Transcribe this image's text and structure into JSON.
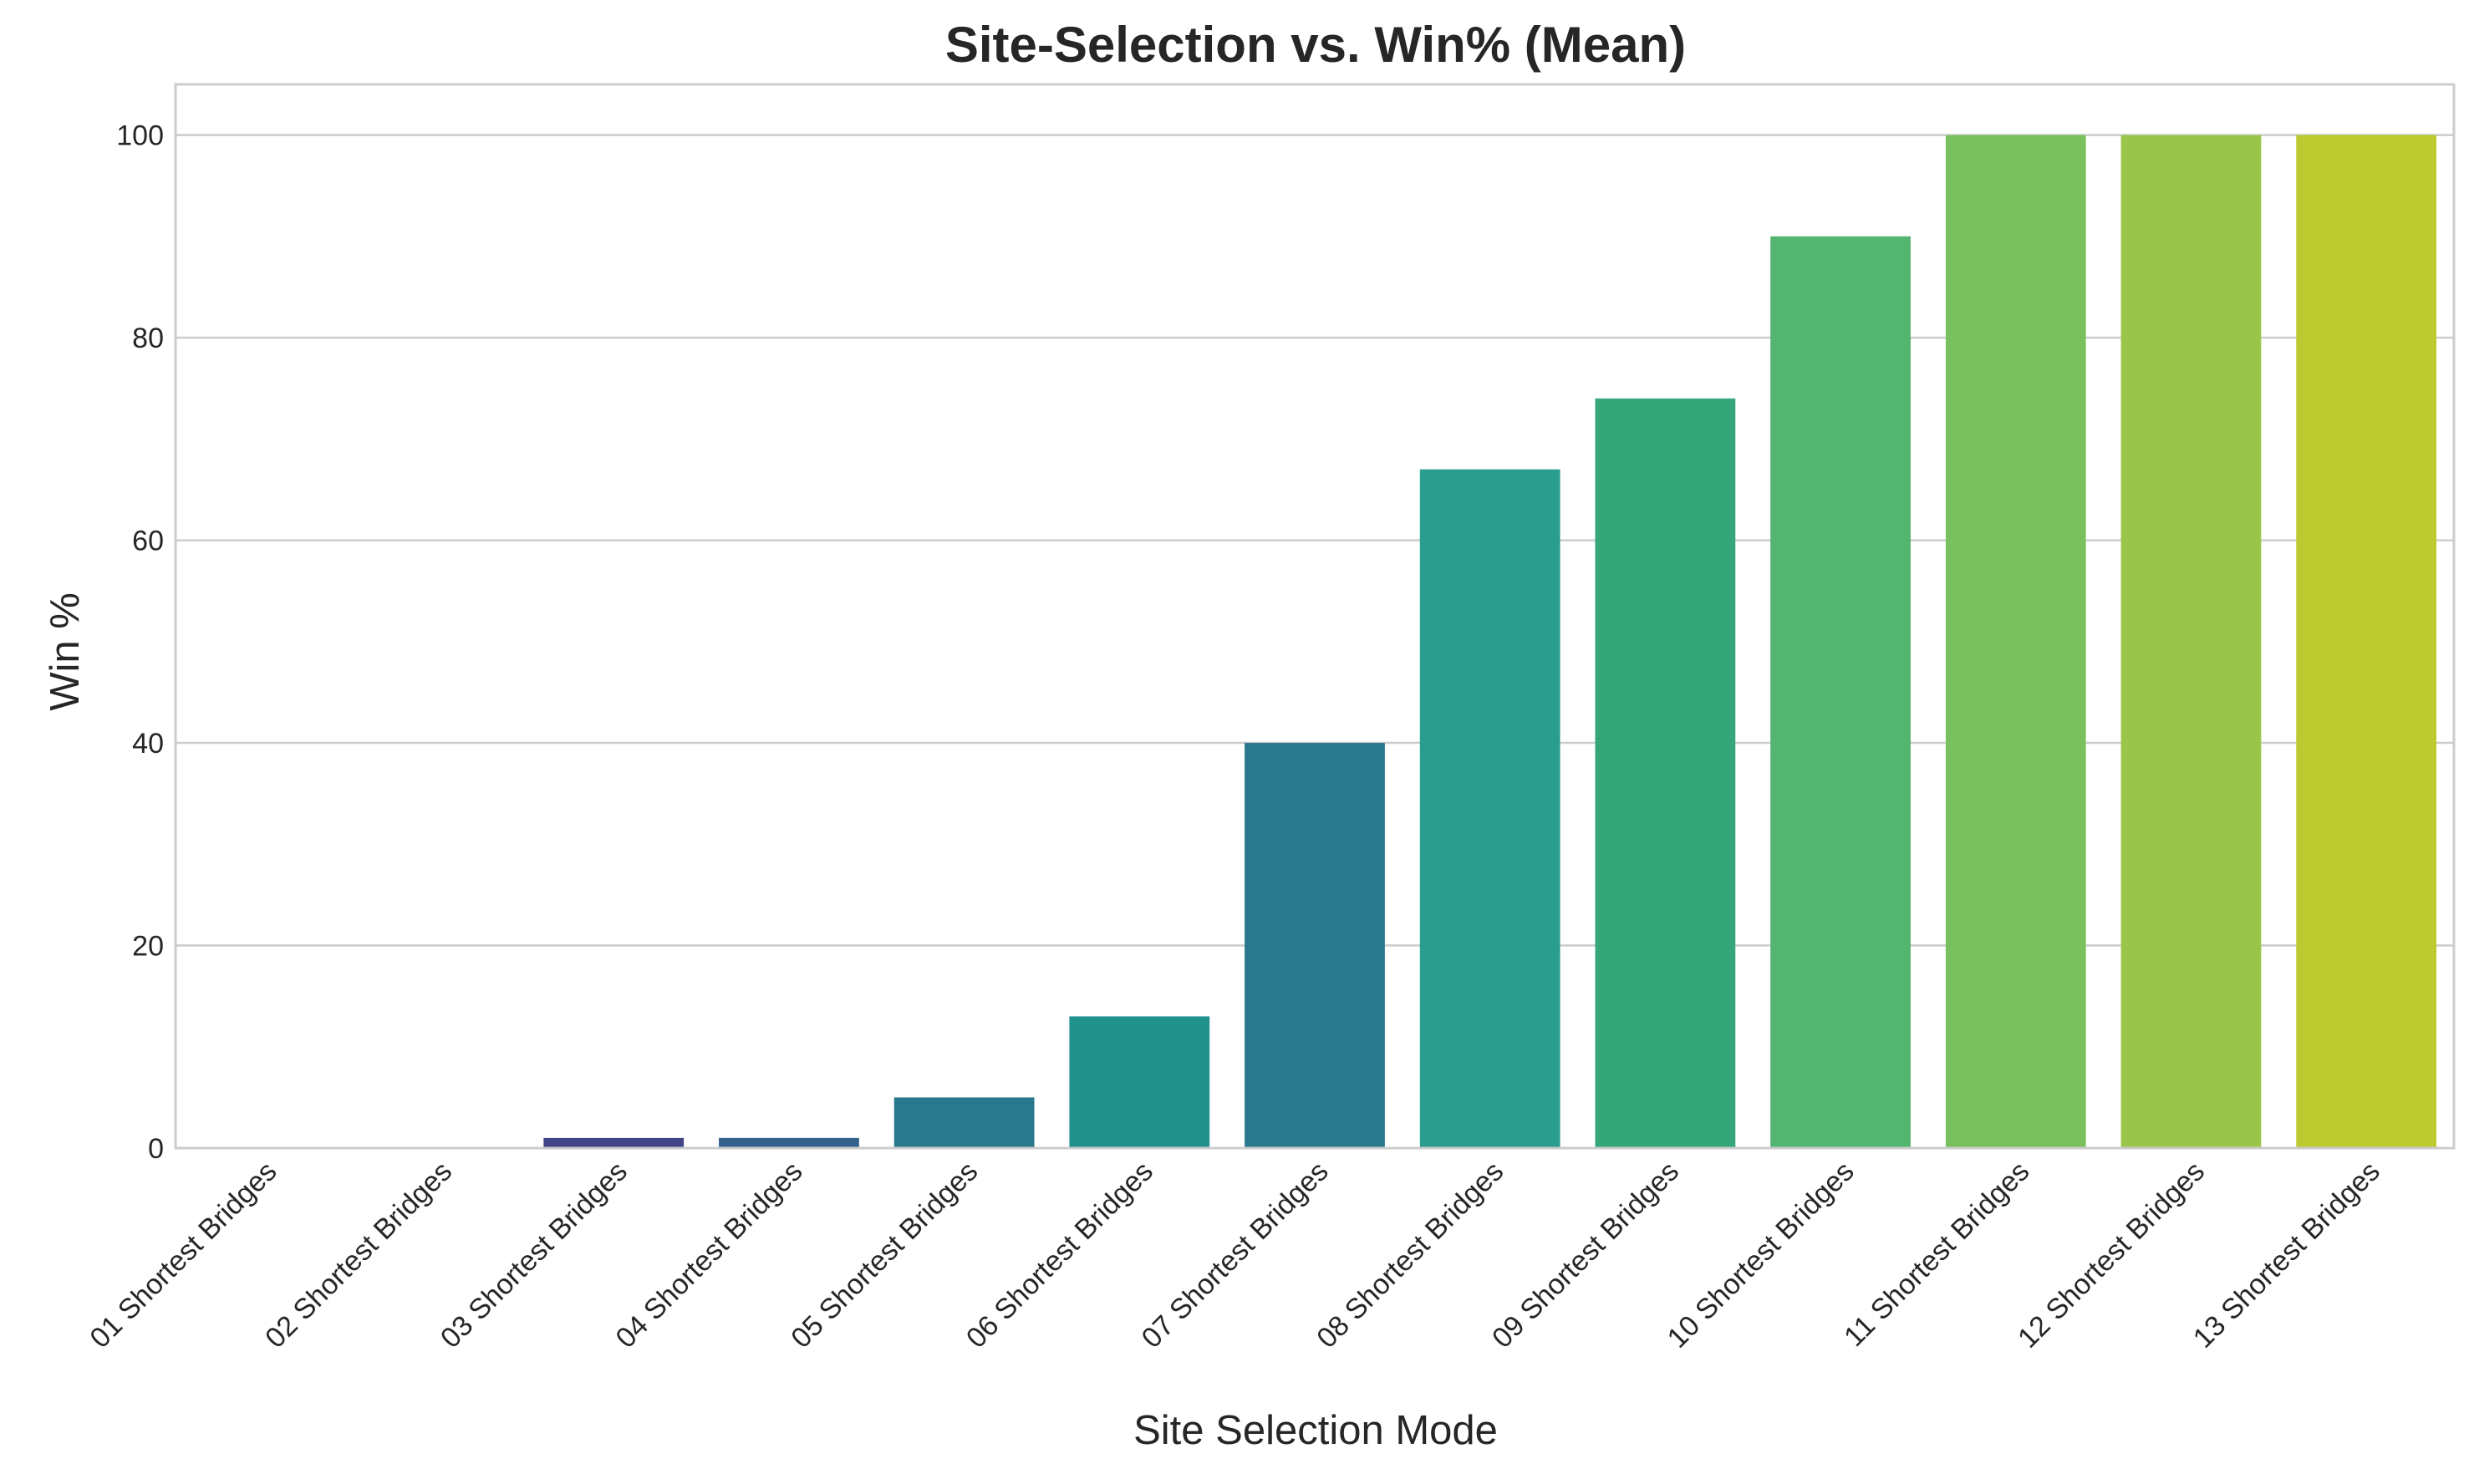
{
  "chart_data": {
    "type": "bar",
    "title": "Site-Selection vs. Win% (Mean)",
    "xlabel": "Site Selection Mode",
    "ylabel": "Win %",
    "ylim": [
      0,
      105
    ],
    "yticks": [
      0,
      20,
      40,
      60,
      80,
      100
    ],
    "grid": "horizontal",
    "categories": [
      "01 Shortest Bridges",
      "02 Shortest Bridges",
      "03 Shortest Bridges",
      "04 Shortest Bridges",
      "05 Shortest Bridges",
      "06 Shortest Bridges",
      "07 Shortest Bridges",
      "08 Shortest Bridges",
      "09 Shortest Bridges",
      "10 Shortest Bridges",
      "11 Shortest Bridges",
      "12 Shortest Bridges",
      "13 Shortest Bridges"
    ],
    "values": [
      0,
      0,
      1,
      1,
      5,
      13,
      40,
      67,
      74,
      90,
      100,
      100,
      100
    ],
    "colors": [
      "#440154",
      "#482475",
      "#414487",
      "#355f8d",
      "#2a788e",
      "#21918c",
      "#2a788e",
      "#2a9d8f",
      "#35a57a",
      "#54b570",
      "#7bc05f",
      "#9bc44a",
      "#bcc92f"
    ]
  }
}
